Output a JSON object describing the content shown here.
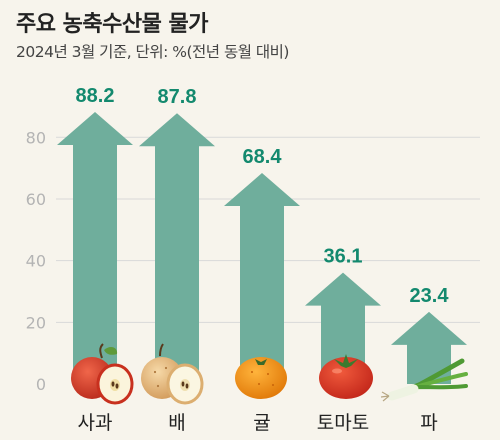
{
  "header": {
    "title": "주요 농축수산물 물가",
    "subtitle": "2024년 3월 기준, 단위: %(전년 동월 대비)"
  },
  "colors": {
    "arrow": "#6fae9c",
    "value_label": "#13896e",
    "axis_tick": "#b4b4b4",
    "gridline": "#d9d9d9",
    "category_label": "#222222",
    "background": "#f7f4ec"
  },
  "chart_data": {
    "type": "bar",
    "title": "주요 농축수산물 물가",
    "subtitle": "2024년 3월 기준, 단위: %(전년 동월 대비)",
    "categories": [
      "사과",
      "배",
      "귤",
      "토마토",
      "파"
    ],
    "values": [
      88.2,
      87.8,
      68.4,
      36.1,
      23.4
    ],
    "value_labels": [
      "88.2",
      "87.8",
      "68.4",
      "36.1",
      "23.4"
    ],
    "icons": [
      "apple-icon",
      "pear-icon",
      "tangerine-icon",
      "tomato-icon",
      "green-onion-icon"
    ],
    "yticks": [
      0,
      20,
      40,
      60,
      80
    ],
    "ylim": [
      0,
      88.2
    ],
    "grid": true,
    "legend": "none"
  }
}
